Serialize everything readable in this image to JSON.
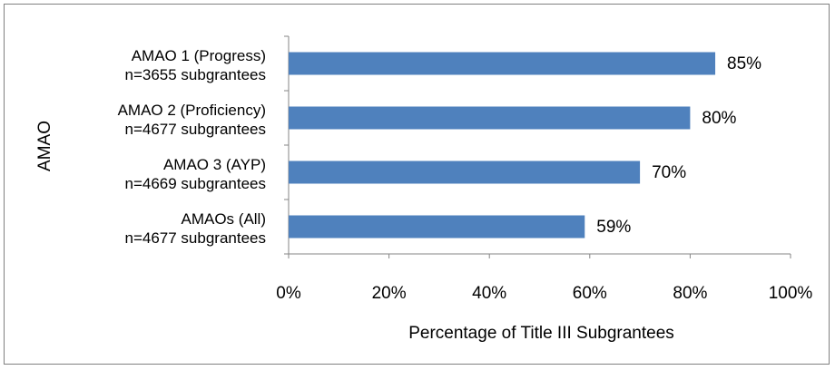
{
  "chart_data": {
    "type": "bar",
    "orientation": "horizontal",
    "categories": [
      [
        "AMAO 1 (Progress)",
        "n=3655 subgrantees"
      ],
      [
        "AMAO 2 (Proficiency)",
        "n=4677 subgrantees"
      ],
      [
        "AMAO 3 (AYP)",
        "n=4669 subgrantees"
      ],
      [
        "AMAOs (All)",
        "n=4677 subgrantees"
      ]
    ],
    "values": [
      85,
      80,
      70,
      59
    ],
    "data_labels": [
      "85%",
      "80%",
      "70%",
      "59%"
    ],
    "xlabel": "Percentage of Title III Subgrantees",
    "ylabel": "AMAO",
    "xlim": [
      0,
      100
    ],
    "xticks": [
      0,
      20,
      40,
      60,
      80,
      100
    ],
    "xtick_labels": [
      "0%",
      "20%",
      "40%",
      "60%",
      "80%",
      "100%"
    ],
    "bar_color": "#4F81BD",
    "grid": false,
    "legend": "none"
  }
}
